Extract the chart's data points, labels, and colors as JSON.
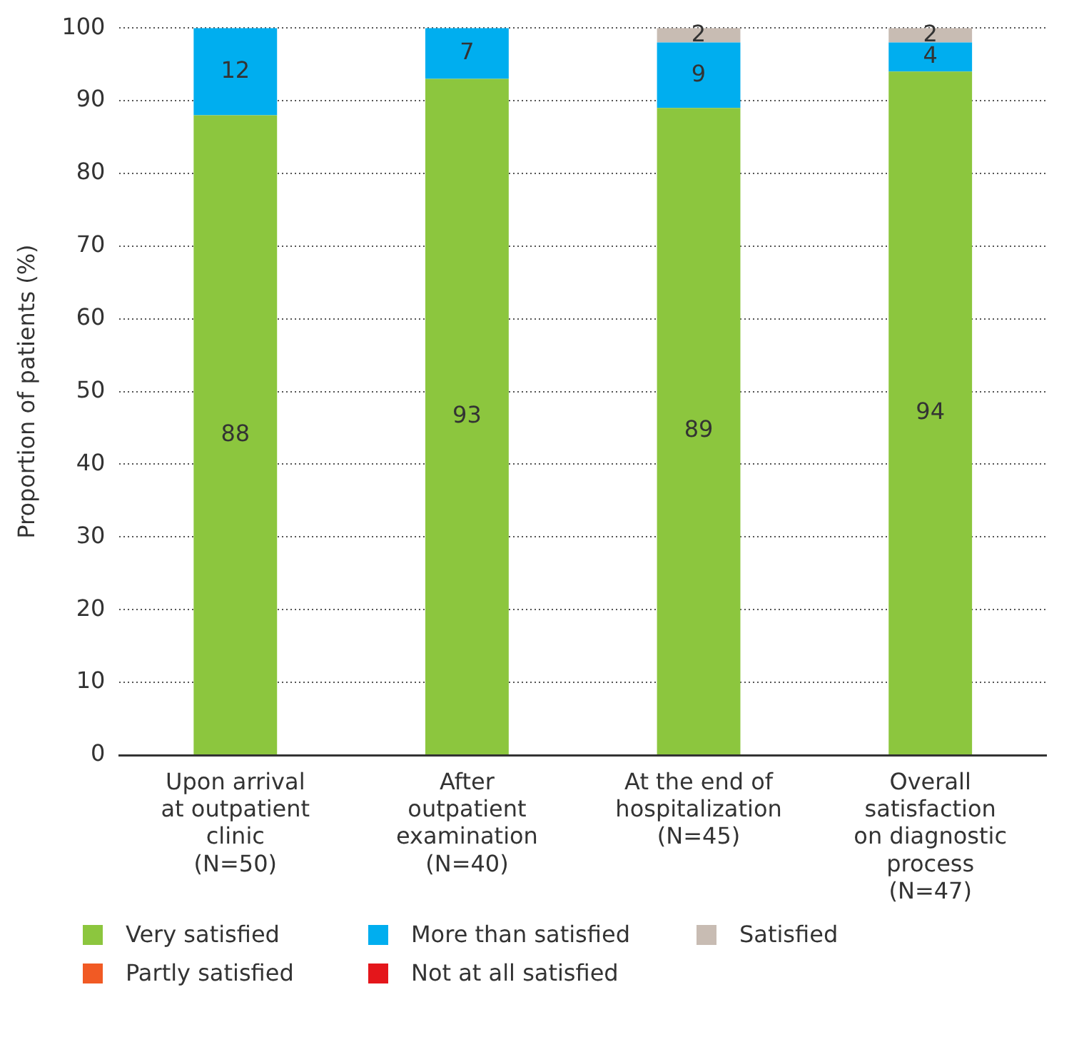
{
  "chart_data": {
    "type": "bar",
    "stacked": true,
    "ylabel": "Proportion of patients (%)",
    "categories": [
      "Upon arrival\nat outpatient\nclinic\n(N=50)",
      "After\noutpatient\nexamination\n(N=40)",
      "At the end of\nhospitalization\n(N=45)",
      "Overall\nsatisfaction\non diagnostic\nprocess\n(N=47)"
    ],
    "series": [
      {
        "name": "Very satisfied",
        "color": "#8cc63e",
        "values": [
          88,
          93,
          89,
          94
        ],
        "value_labels": [
          "88",
          "93",
          "89",
          "94"
        ]
      },
      {
        "name": "More than satisfied",
        "color": "#00aeef",
        "values": [
          12,
          7,
          9,
          4
        ],
        "value_labels": [
          "12",
          "7",
          "9",
          "4"
        ]
      },
      {
        "name": "Satisfied",
        "color": "#c8bcb3",
        "values": [
          0,
          0,
          2,
          2
        ],
        "value_labels": [
          null,
          null,
          "2",
          "2"
        ]
      },
      {
        "name": "Partly satisfied",
        "color": "#f15a24",
        "values": [
          0,
          0,
          0,
          0
        ]
      },
      {
        "name": "Not at all satisfied",
        "color": "#e4161b",
        "values": [
          0,
          0,
          0,
          0
        ]
      }
    ],
    "ylim": [
      0,
      100
    ],
    "yticks": [
      0,
      10,
      20,
      30,
      40,
      50,
      60,
      70,
      80,
      90,
      100
    ],
    "grid": "y",
    "legend": "bottom"
  }
}
